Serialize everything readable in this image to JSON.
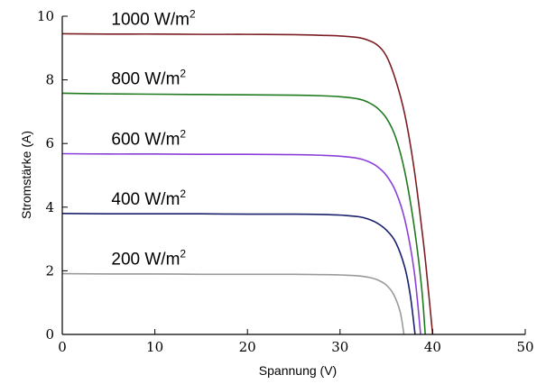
{
  "chart_data": {
    "type": "line",
    "title": "",
    "xlabel": "Spannung (V)",
    "ylabel": "Stromstärke (A)",
    "xlim": [
      0,
      50
    ],
    "ylim": [
      0,
      10
    ],
    "x_ticks": [
      "0",
      "10",
      "20",
      "30",
      "40",
      "50"
    ],
    "y_ticks": [
      "0",
      "2",
      "4",
      "6",
      "8",
      "10"
    ],
    "grid": false,
    "legend": "inline-labels",
    "series": [
      {
        "name": "1000 W/m",
        "unit_sup": "2",
        "color": "#7b1f24",
        "x": [
          0,
          5,
          10,
          15,
          20,
          25,
          28,
          30,
          32,
          33,
          34,
          35,
          36,
          37,
          38,
          39,
          39.5,
          40
        ],
        "y": [
          9.45,
          9.44,
          9.44,
          9.43,
          9.43,
          9.42,
          9.4,
          9.38,
          9.33,
          9.25,
          9.1,
          8.75,
          8.0,
          6.9,
          5.2,
          2.9,
          1.5,
          0
        ]
      },
      {
        "name": "800 W/m",
        "unit_sup": "2",
        "color": "#1f7a1f",
        "x": [
          0,
          5,
          10,
          15,
          20,
          25,
          28,
          30,
          32,
          33,
          34,
          35,
          36,
          37,
          38,
          38.8,
          39.2
        ],
        "y": [
          7.58,
          7.56,
          7.55,
          7.54,
          7.53,
          7.52,
          7.5,
          7.47,
          7.4,
          7.3,
          7.12,
          6.8,
          6.2,
          5.1,
          3.4,
          1.5,
          0
        ]
      },
      {
        "name": "600 W/m",
        "unit_sup": "2",
        "color": "#8b3fd9",
        "x": [
          0,
          5,
          10,
          15,
          20,
          25,
          28,
          30,
          32,
          33,
          34,
          35,
          36,
          37,
          38,
          38.7
        ],
        "y": [
          5.68,
          5.67,
          5.67,
          5.66,
          5.66,
          5.65,
          5.63,
          5.6,
          5.53,
          5.44,
          5.28,
          5.0,
          4.5,
          3.6,
          2.0,
          0
        ]
      },
      {
        "name": "400 W/m",
        "unit_sup": "2",
        "color": "#1a1f6e",
        "x": [
          0,
          5,
          10,
          15,
          20,
          25,
          28,
          30,
          32,
          33,
          34,
          35,
          36,
          37,
          37.6,
          38.1
        ],
        "y": [
          3.8,
          3.79,
          3.79,
          3.79,
          3.78,
          3.78,
          3.77,
          3.75,
          3.7,
          3.63,
          3.5,
          3.28,
          2.9,
          2.1,
          1.2,
          0
        ]
      },
      {
        "name": "200 W/m",
        "unit_sup": "2",
        "color": "#9a9a9a",
        "x": [
          0,
          5,
          10,
          15,
          20,
          25,
          28,
          30,
          32,
          33,
          34,
          35,
          35.8,
          36.5,
          36.9
        ],
        "y": [
          1.91,
          1.9,
          1.9,
          1.89,
          1.89,
          1.89,
          1.88,
          1.87,
          1.84,
          1.8,
          1.72,
          1.55,
          1.25,
          0.7,
          0
        ]
      }
    ]
  }
}
